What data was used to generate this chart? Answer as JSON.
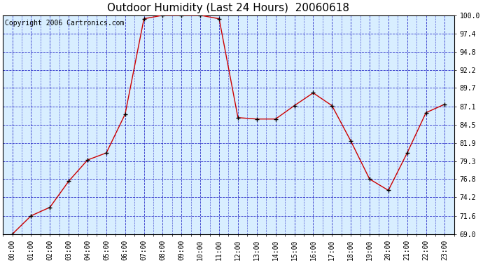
{
  "title": "Outdoor Humidity (Last 24 Hours)  20060618",
  "copyright": "Copyright 2006 Cartronics.com",
  "x_labels": [
    "00:00",
    "01:00",
    "02:00",
    "03:00",
    "04:00",
    "05:00",
    "06:00",
    "07:00",
    "08:00",
    "09:00",
    "10:00",
    "11:00",
    "12:00",
    "13:00",
    "14:00",
    "15:00",
    "16:00",
    "17:00",
    "18:00",
    "19:00",
    "20:00",
    "21:00",
    "22:00",
    "23:00"
  ],
  "y_values": [
    69.0,
    71.6,
    72.8,
    76.5,
    79.5,
    80.5,
    86.0,
    99.5,
    100.0,
    100.0,
    100.0,
    99.5,
    85.5,
    85.3,
    85.3,
    87.2,
    89.0,
    87.2,
    82.2,
    76.8,
    75.2,
    80.5,
    86.2,
    87.4
  ],
  "ylim_min": 69.0,
  "ylim_max": 100.0,
  "yticks": [
    69.0,
    71.6,
    74.2,
    76.8,
    79.3,
    81.9,
    84.5,
    87.1,
    89.7,
    92.2,
    94.8,
    97.4,
    100.0
  ],
  "line_color": "#cc0000",
  "marker_color": "#000000",
  "bg_color": "#d8eeff",
  "outer_bg": "#ffffff",
  "grid_color": "#0000bb",
  "title_color": "#000000",
  "title_fontsize": 11,
  "copyright_fontsize": 7,
  "tick_fontsize": 7,
  "ytick_fontsize": 7
}
